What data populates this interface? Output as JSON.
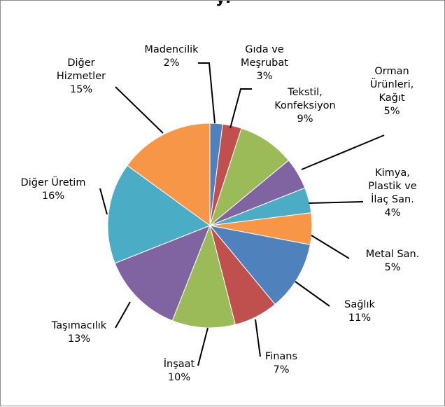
{
  "title_fragment": "yi",
  "colors": {
    "madencilik": "#4f81bd",
    "gida": "#c0504d",
    "tekstil": "#9bbb59",
    "orman": "#8064a2",
    "kimya": "#4bacc6",
    "metal": "#f79646",
    "saglik": "#4f81bd",
    "finans": "#c0504d",
    "insaat": "#9bbb59",
    "tasimacilik": "#8064a2",
    "diger_uretim": "#4bacc6",
    "diger_hizmetler": "#f79646"
  },
  "chart_data": {
    "type": "pie",
    "title": "",
    "legend": "none",
    "slices": [
      {
        "key": "madencilik",
        "lines": [
          "Madencilik",
          "2%"
        ],
        "value": 2
      },
      {
        "key": "gida",
        "lines": [
          "Gıda ve",
          "Meşrubat",
          "3%"
        ],
        "value": 3
      },
      {
        "key": "tekstil",
        "lines": [
          "Tekstil,",
          "Konfeksiyon",
          "9%"
        ],
        "value": 9
      },
      {
        "key": "orman",
        "lines": [
          "Orman",
          "Ürünleri,",
          "Kağıt",
          "5%"
        ],
        "value": 5
      },
      {
        "key": "kimya",
        "lines": [
          "Kimya,",
          "Plastik ve",
          "İlaç San.",
          "4%"
        ],
        "value": 4
      },
      {
        "key": "metal",
        "lines": [
          "Metal San.",
          "5%"
        ],
        "value": 5
      },
      {
        "key": "saglik",
        "lines": [
          "Sağlık",
          "11%"
        ],
        "value": 11
      },
      {
        "key": "finans",
        "lines": [
          "Finans",
          "7%"
        ],
        "value": 7
      },
      {
        "key": "insaat",
        "lines": [
          "İnşaat",
          "10%"
        ],
        "value": 10
      },
      {
        "key": "tasimacilik",
        "lines": [
          "Taşımacılık",
          "13%"
        ],
        "value": 13
      },
      {
        "key": "diger_uretim",
        "lines": [
          "Diğer Üretim",
          "16%"
        ],
        "value": 16
      },
      {
        "key": "diger_hizmetler",
        "lines": [
          "Diğer",
          "Hizmetler",
          "15%"
        ],
        "value": 15
      }
    ]
  }
}
